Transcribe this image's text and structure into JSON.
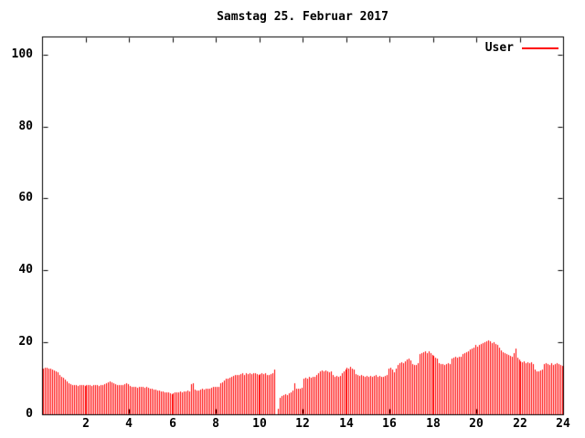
{
  "chart_data": {
    "type": "bar",
    "title": "Samstag 25. Februar 2017",
    "xlabel": "",
    "ylabel": "",
    "x_unit": "hour of day",
    "xlim": [
      0,
      24
    ],
    "ylim": [
      0,
      105
    ],
    "xticks": [
      2,
      4,
      6,
      8,
      10,
      12,
      14,
      16,
      18,
      20,
      22,
      24
    ],
    "yticks": [
      0,
      20,
      40,
      60,
      80,
      100
    ],
    "grid": false,
    "legend_position": "top-right",
    "background_color": "#ffffff",
    "axis_color": "#000000",
    "series": [
      {
        "name": "User",
        "color": "#ff0000",
        "interval_minutes": 5,
        "x_start_hour": 0,
        "values": [
          12.8,
          13.0,
          12.9,
          12.7,
          12.6,
          12.5,
          12.2,
          12.0,
          11.6,
          10.9,
          10.4,
          10.1,
          9.6,
          9.1,
          8.5,
          8.3,
          8.2,
          8.0,
          8.1,
          7.9,
          8.0,
          8.1,
          8.0,
          7.9,
          8.0,
          8.2,
          8.0,
          7.9,
          8.1,
          8.0,
          8.0,
          7.9,
          8.0,
          8.1,
          8.4,
          8.7,
          9.0,
          9.1,
          8.8,
          8.6,
          8.3,
          8.1,
          8.0,
          8.0,
          8.1,
          8.4,
          8.5,
          8.3,
          7.8,
          7.6,
          7.5,
          7.6,
          7.4,
          7.5,
          7.6,
          7.5,
          7.4,
          7.5,
          7.3,
          7.2,
          7.0,
          6.9,
          6.8,
          6.6,
          6.5,
          6.4,
          6.3,
          6.2,
          6.1,
          6.0,
          5.8,
          5.6,
          5.9,
          6.1,
          6.0,
          6.2,
          6.3,
          6.2,
          6.4,
          6.3,
          6.5,
          6.4,
          8.3,
          8.5,
          6.8,
          6.6,
          6.7,
          6.9,
          7.0,
          6.8,
          7.0,
          7.1,
          7.2,
          7.4,
          7.6,
          7.7,
          7.5,
          7.7,
          8.5,
          8.8,
          9.5,
          9.8,
          10.0,
          10.2,
          10.4,
          10.6,
          10.8,
          11.0,
          10.9,
          11.1,
          11.3,
          11.0,
          11.5,
          11.2,
          11.4,
          11.1,
          11.3,
          11.5,
          11.2,
          11.0,
          11.2,
          11.4,
          11.1,
          11.3,
          11.0,
          10.8,
          11.1,
          11.3,
          12.4,
          0.0,
          1.5,
          4.5,
          5.0,
          5.3,
          5.5,
          5.2,
          5.8,
          6.2,
          6.6,
          8.5,
          7.2,
          7.0,
          7.2,
          7.3,
          9.8,
          10.2,
          10.0,
          10.4,
          10.2,
          10.5,
          10.3,
          11.0,
          11.5,
          11.9,
          12.2,
          11.8,
          12.3,
          12.0,
          11.7,
          11.9,
          10.8,
          10.5,
          10.6,
          10.4,
          10.6,
          11.5,
          12.0,
          12.5,
          13.0,
          12.7,
          13.2,
          12.8,
          12.4,
          11.2,
          10.9,
          10.7,
          10.8,
          10.6,
          10.5,
          10.7,
          10.5,
          10.6,
          10.4,
          10.6,
          10.8,
          10.5,
          10.7,
          10.5,
          10.4,
          10.6,
          11.0,
          12.7,
          13.0,
          12.5,
          11.6,
          12.6,
          13.8,
          14.2,
          14.5,
          14.3,
          14.8,
          15.1,
          15.4,
          15.0,
          14.0,
          13.6,
          13.8,
          14.2,
          16.8,
          17.0,
          17.3,
          17.5,
          17.1,
          17.4,
          16.9,
          16.5,
          16.2,
          15.8,
          15.4,
          14.1,
          13.9,
          14.0,
          13.8,
          14.0,
          14.1,
          13.9,
          15.5,
          15.8,
          16.0,
          15.7,
          16.1,
          15.9,
          16.7,
          17.0,
          17.3,
          17.6,
          17.9,
          18.2,
          18.5,
          19.4,
          18.8,
          19.2,
          19.5,
          19.8,
          20.0,
          20.3,
          20.6,
          20.2,
          19.9,
          20.1,
          19.6,
          19.3,
          18.4,
          17.8,
          17.3,
          17.0,
          16.8,
          16.6,
          16.2,
          16.0,
          17.0,
          18.2,
          15.8,
          15.2,
          14.8,
          14.5,
          14.6,
          14.3,
          14.5,
          14.2,
          14.4,
          14.0,
          12.4,
          12.0,
          11.9,
          12.2,
          12.4,
          13.9,
          14.2,
          14.0,
          13.8,
          14.1,
          13.6,
          13.9,
          14.2,
          14.0,
          13.7,
          13.4
        ]
      }
    ]
  }
}
